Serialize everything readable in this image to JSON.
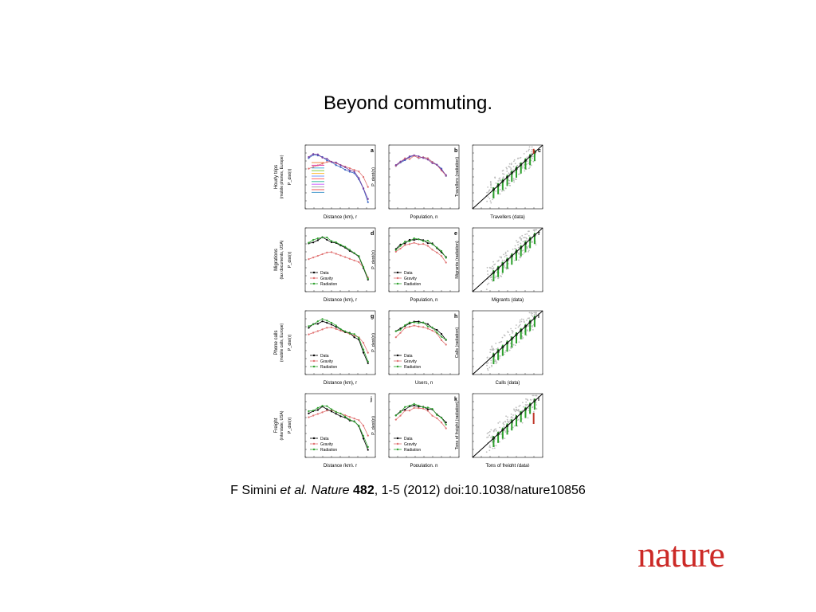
{
  "slide": {
    "title": "Beyond commuting.",
    "citation": {
      "authors": "F Simini",
      "etal": "et al.",
      "journal": "Nature",
      "volume": "482",
      "rest": ", 1-5 (2012) doi:10.1038/nature10856"
    },
    "logo_text": "nature",
    "brand_color": "#cc2a27"
  },
  "figure": {
    "rows": [
      {
        "ylabel_main": "Hourly trips",
        "ylabel_sub": "(mobile phones, Europe)",
        "panels": [
          {
            "letter": "a",
            "xlabel": "Distance (km), r",
            "ylabel": "P_dist(r)",
            "type": "distance"
          },
          {
            "letter": "b",
            "xlabel": "Population, n",
            "ylabel": "P_dest(n)",
            "type": "population"
          },
          {
            "letter": "c",
            "xlabel": "Travellers (data)",
            "ylabel": "Travellers (radiation)",
            "type": "scatter"
          }
        ]
      },
      {
        "ylabel_main": "Migrations",
        "ylabel_sub": "(tax documents, USA)",
        "panels": [
          {
            "letter": "d",
            "xlabel": "Distance (km), r",
            "ylabel": "P_dist(r)",
            "type": "distance"
          },
          {
            "letter": "e",
            "xlabel": "Population, n",
            "ylabel": "P_dest(n)",
            "type": "population"
          },
          {
            "letter": "f",
            "xlabel": "Migrants (data)",
            "ylabel": "Migrants (radiation)",
            "type": "scatter"
          }
        ]
      },
      {
        "ylabel_main": "Phone calls",
        "ylabel_sub": "(mobile calls, Europe)",
        "panels": [
          {
            "letter": "g",
            "xlabel": "Distance (km), r",
            "ylabel": "P_dist(r)",
            "type": "distance"
          },
          {
            "letter": "h",
            "xlabel": "Users, n",
            "ylabel": "P_dest(n)",
            "type": "population"
          },
          {
            "letter": "i",
            "xlabel": "Calls (data)",
            "ylabel": "Calls (radiation)",
            "type": "scatter"
          }
        ]
      },
      {
        "ylabel_main": "Freight",
        "ylabel_sub": "(interstate, USA)",
        "panels": [
          {
            "letter": "j",
            "xlabel": "Distance (km), r",
            "ylabel": "P_dist(r)",
            "type": "distance"
          },
          {
            "letter": "k",
            "xlabel": "Population, n",
            "ylabel": "P_dest(n)",
            "type": "population"
          },
          {
            "letter": "l",
            "xlabel": "Tons of freight (data)",
            "ylabel": "Tons of freight (radiation)",
            "type": "scatter"
          }
        ]
      }
    ],
    "legend": [
      "Data",
      "Gravity",
      "Radiation"
    ],
    "colors": {
      "data": "#000000",
      "gravity": "#e07070",
      "radiation": "#2ca02c",
      "blue": "#3a66c4",
      "grey": "#bdbdbd"
    }
  }
}
